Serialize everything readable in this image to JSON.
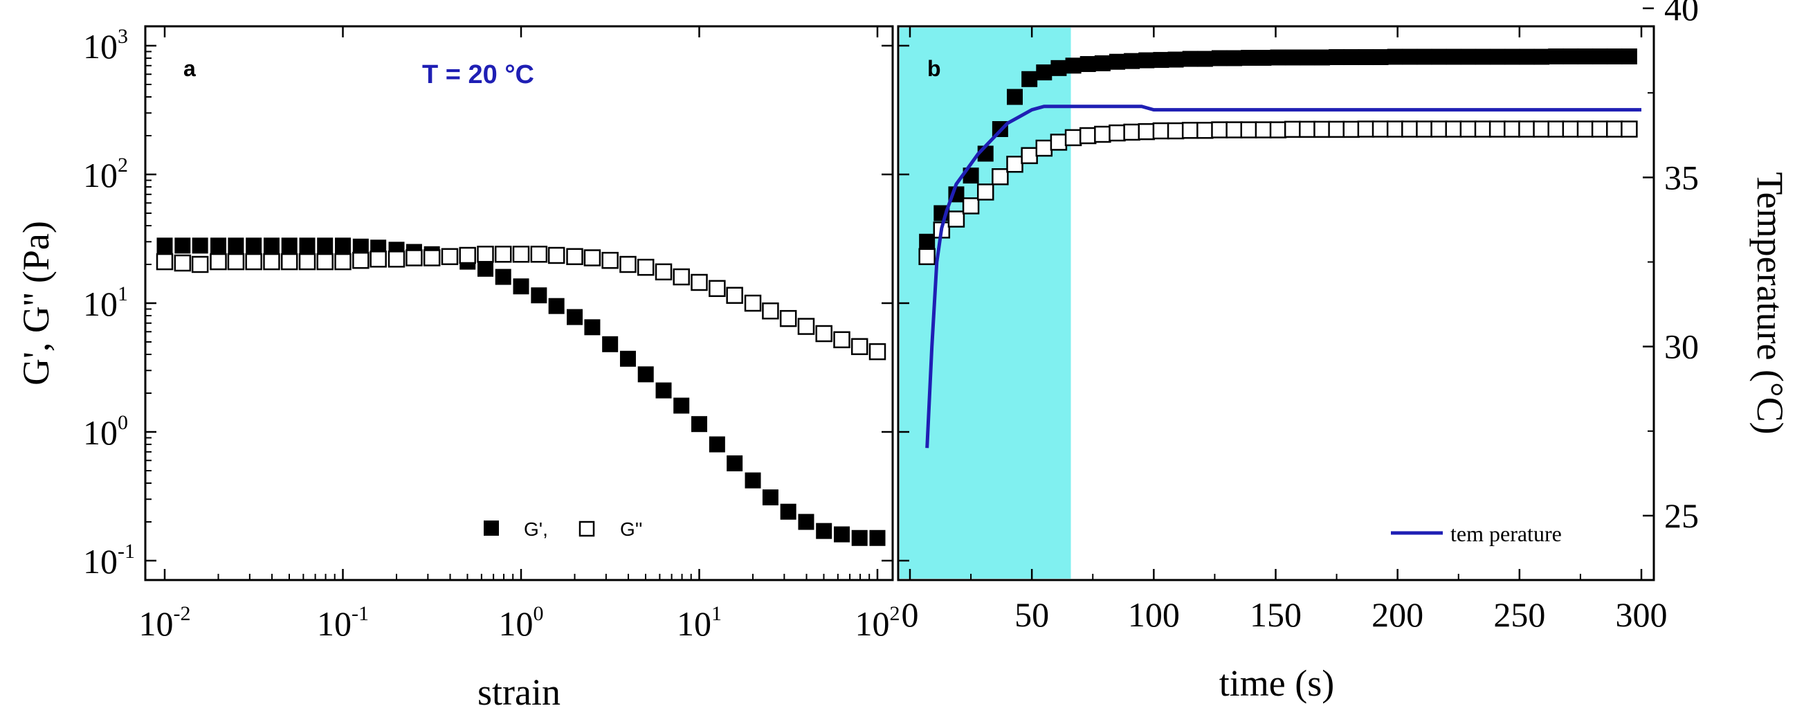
{
  "colors": {
    "highlight": "#80f0f0",
    "temperature_line": "#1f1fb4",
    "annotation": "#1f1fb4",
    "marker": "#000000"
  },
  "chart_data": [
    {
      "panel": "a",
      "type": "scatter",
      "xscale": "log",
      "yscale": "log",
      "xlabel": "strain",
      "ylabel": "G', G'' (Pa)",
      "annotation": "T = 20 °C",
      "xlim": [
        0.007,
        130
      ],
      "ylim": [
        0.1,
        1000
      ],
      "x_ticks": [
        {
          "base": "10",
          "exp": "-2",
          "value": 0.01
        },
        {
          "base": "10",
          "exp": "-1",
          "value": 0.1
        },
        {
          "base": "10",
          "exp": "0",
          "value": 1
        },
        {
          "base": "10",
          "exp": "1",
          "value": 10
        },
        {
          "base": "10",
          "exp": "2",
          "value": 100
        }
      ],
      "y_ticks": [
        {
          "base": "10",
          "exp": "-1",
          "value": 0.1
        },
        {
          "base": "10",
          "exp": "0",
          "value": 1
        },
        {
          "base": "10",
          "exp": "1",
          "value": 10
        },
        {
          "base": "10",
          "exp": "2",
          "value": 100
        },
        {
          "base": "10",
          "exp": "3",
          "value": 1000
        }
      ],
      "legend": [
        {
          "label": "G',",
          "marker": "filled-square"
        },
        {
          "label": "G''",
          "marker": "open-square"
        }
      ],
      "series": [
        {
          "name": "G'",
          "marker": "filled-square",
          "x": [
            0.01,
            0.0126,
            0.0158,
            0.02,
            0.0251,
            0.0316,
            0.0398,
            0.0501,
            0.0631,
            0.0794,
            0.1,
            0.126,
            0.158,
            0.2,
            0.251,
            0.316,
            0.398,
            0.501,
            0.631,
            0.794,
            1.0,
            1.26,
            1.58,
            2.0,
            2.51,
            3.16,
            3.98,
            5.01,
            6.31,
            7.94,
            10.0,
            12.6,
            15.8,
            20.0,
            25.1,
            31.6,
            39.8,
            50.1,
            63.1,
            79.4,
            100
          ],
          "y": [
            28,
            28,
            28,
            28,
            28,
            28,
            28,
            28,
            28,
            28,
            28,
            27.5,
            27,
            26,
            25,
            24,
            23,
            21,
            18.5,
            16,
            13.5,
            11.5,
            9.5,
            7.8,
            6.5,
            4.8,
            3.7,
            2.8,
            2.1,
            1.6,
            1.15,
            0.8,
            0.57,
            0.42,
            0.31,
            0.24,
            0.2,
            0.17,
            0.16,
            0.15,
            0.15
          ]
        },
        {
          "name": "G''",
          "marker": "open-square",
          "x": [
            0.01,
            0.0126,
            0.0158,
            0.02,
            0.0251,
            0.0316,
            0.0398,
            0.0501,
            0.0631,
            0.0794,
            0.1,
            0.126,
            0.158,
            0.2,
            0.251,
            0.316,
            0.398,
            0.501,
            0.631,
            0.794,
            1.0,
            1.26,
            1.58,
            2.0,
            2.51,
            3.16,
            3.98,
            5.01,
            6.31,
            7.94,
            10.0,
            12.6,
            15.8,
            20.0,
            25.1,
            31.6,
            39.8,
            50.1,
            63.1,
            79.4,
            100
          ],
          "y": [
            21,
            20.5,
            20,
            21,
            21,
            21,
            21,
            21,
            21,
            21,
            21,
            21.5,
            22,
            22,
            22.5,
            22.5,
            23,
            23.5,
            24,
            24,
            24,
            24,
            23.5,
            23,
            22.5,
            21.5,
            20,
            19,
            17.5,
            16,
            14.5,
            13,
            11.5,
            10,
            8.7,
            7.6,
            6.6,
            5.8,
            5.2,
            4.6,
            4.2
          ]
        }
      ]
    },
    {
      "panel": "b",
      "type": "scatter",
      "xlabel": "time (s)",
      "ylabel_left": "",
      "ylabel_right": "Temperature (°C)",
      "xlim": [
        -5,
        300
      ],
      "ylim_left_log": [
        0.1,
        1000
      ],
      "ylim_right": [
        23,
        40
      ],
      "x_ticks": [
        "0",
        "50",
        "100",
        "150",
        "200",
        "250",
        "300"
      ],
      "y_ticks_right": [
        "25",
        "30",
        "35",
        "40"
      ],
      "shaded_region_x": [
        -5,
        66
      ],
      "legend": [
        {
          "label": "tem perature",
          "marker": "line"
        }
      ],
      "series": [
        {
          "name": "G'",
          "marker": "filled-square",
          "x": [
            7,
            13,
            19,
            25,
            31,
            37,
            43,
            49,
            55,
            61,
            67,
            73,
            79,
            85,
            91,
            97,
            103,
            109,
            115,
            121,
            127,
            133,
            139,
            145,
            151,
            157,
            163,
            169,
            175,
            181,
            187,
            193,
            199,
            205,
            211,
            217,
            223,
            229,
            235,
            241,
            247,
            253,
            259,
            265,
            271,
            277,
            283,
            289,
            295
          ],
          "y": [
            30,
            50,
            70,
            98,
            145,
            225,
            400,
            550,
            620,
            670,
            700,
            720,
            730,
            750,
            760,
            770,
            775,
            780,
            790,
            790,
            800,
            800,
            805,
            805,
            810,
            810,
            810,
            810,
            815,
            815,
            815,
            815,
            820,
            820,
            820,
            820,
            820,
            820,
            820,
            820,
            820,
            820,
            820,
            825,
            825,
            825,
            825,
            825,
            825
          ]
        },
        {
          "name": "G''",
          "marker": "open-square",
          "x": [
            7,
            13,
            19,
            25,
            31,
            37,
            43,
            49,
            55,
            61,
            67,
            73,
            79,
            85,
            91,
            97,
            103,
            109,
            115,
            121,
            127,
            133,
            139,
            145,
            151,
            157,
            163,
            169,
            175,
            181,
            187,
            193,
            199,
            205,
            211,
            217,
            223,
            229,
            235,
            241,
            247,
            253,
            259,
            265,
            271,
            277,
            283,
            289,
            295
          ],
          "y": [
            23,
            37,
            45,
            57,
            73,
            96,
            120,
            140,
            160,
            178,
            193,
            200,
            205,
            210,
            213,
            215,
            218,
            218,
            220,
            220,
            222,
            222,
            222,
            222,
            222,
            224,
            224,
            224,
            224,
            224,
            225,
            225,
            225,
            225,
            225,
            225,
            225,
            225,
            225,
            225,
            225,
            225,
            225,
            225,
            225,
            225,
            225,
            225,
            225
          ]
        },
        {
          "name": "temperature",
          "marker": "line",
          "axis": "right",
          "x": [
            7,
            9,
            11,
            13,
            15,
            17,
            19,
            22,
            25,
            28,
            32,
            36,
            40,
            45,
            50,
            55,
            60,
            65,
            95,
            100,
            150,
            200,
            250,
            300
          ],
          "y": [
            27,
            30,
            32.5,
            33.5,
            34,
            34.4,
            34.8,
            35.1,
            35.4,
            35.7,
            36.0,
            36.3,
            36.6,
            36.8,
            37.0,
            37.1,
            37.1,
            37.1,
            37.1,
            37.0,
            37.0,
            37.0,
            37.0,
            37.0
          ]
        }
      ]
    }
  ]
}
